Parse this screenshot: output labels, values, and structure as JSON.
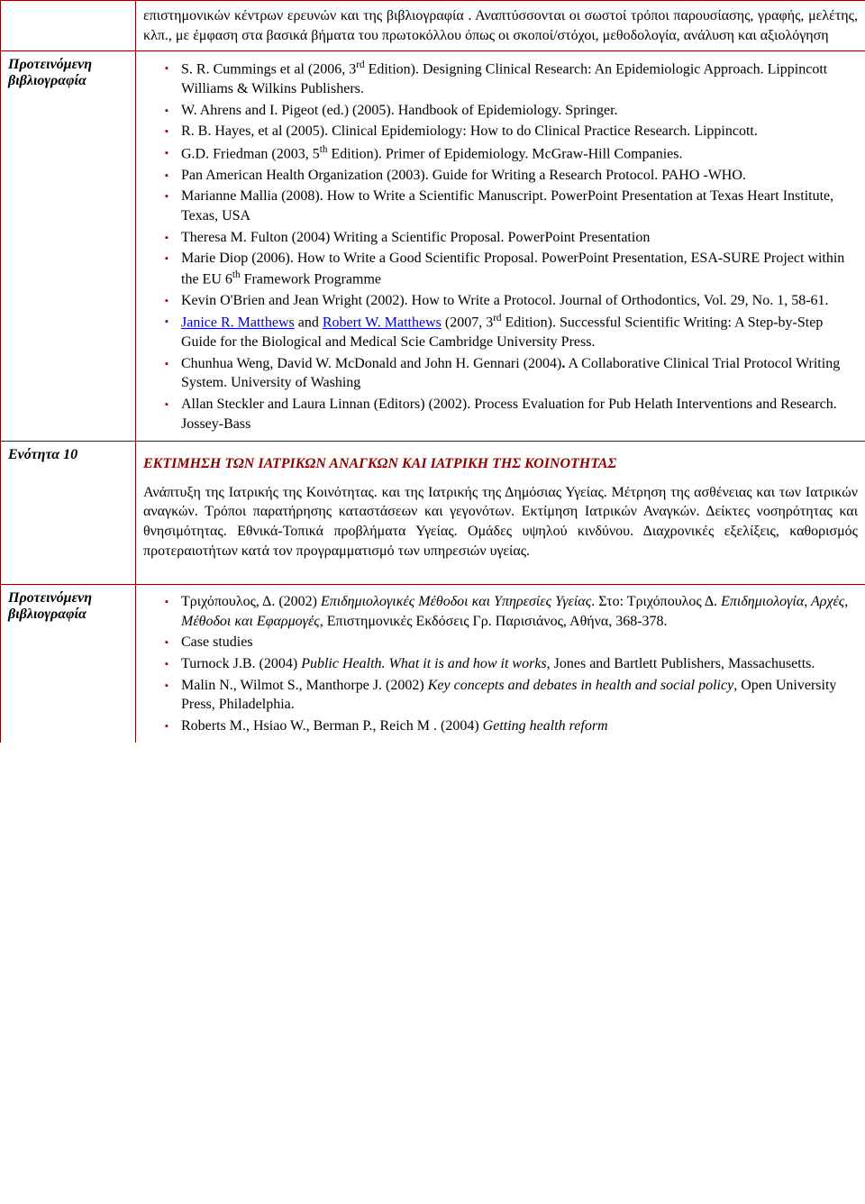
{
  "row1": {
    "label": "",
    "body": "επιστημονικών κέντρων ερευνών και της βιβλιογραφία . Αναπτύσσονται οι σωστοί τρόποι παρουσίασης, γραφής, μελέτης, κλπ., με έμφαση στα βασικά βήματα του πρωτοκόλλου όπως οι σκοποί/στόχοι, μεθοδολογία, ανάλυση και αξιολόγηση"
  },
  "row2": {
    "label": "Προτεινόμενη βιβλιογραφία",
    "items": [
      {
        "pre": "S. R. Cummings et al (2006, 3",
        "sup": "rd",
        "post": " Edition). Designing Clinical Research: An Epidemiologic Approach. Lippincott Williams & Wilkins Publishers."
      },
      {
        "pre": "W. Ahrens and I. Pigeot (ed.) (2005).  Handbook of Epidemiology.  Springer.",
        "sup": "",
        "post": ""
      },
      {
        "pre": "R. B. Hayes, et al (2005). Clinical Epidemiology: How to do Clinical Practice Research.  Lippincott.",
        "sup": "",
        "post": ""
      },
      {
        "pre": "G.D. Friedman (2003, 5",
        "sup": "th",
        "post": " Edition). Primer of Epidemiology. McGraw-Hill Companies."
      },
      {
        "pre": "Pan American Health Organization (2003).  Guide for Writing a Research Protocol. PAHO -WHO.",
        "sup": "",
        "post": ""
      },
      {
        "pre": "Marianne Mallia (2008).  How to Write a Scientific Manuscript.  PowerPoint Presentation at Texas Heart Institute, Texas, USA",
        "sup": "",
        "post": ""
      },
      {
        "pre": "Theresa M. Fulton (2004) Writing a Scientific Proposal.  PowerPoint Presentation",
        "sup": "",
        "post": ""
      },
      {
        "pre": "Marie Diop (2006).  How to Write a Good Scientific Proposal.  PowerPoint Presentation, ESA-SURE Project  within the EU 6",
        "sup": "th",
        "post": " Framework Programme"
      },
      {
        "pre": "Kevin O'Brien and Jean Wright (2002). How to Write a Protocol.  Journal of Orthodontics, Vol. 29, No. 1, 58-61.",
        "sup": "",
        "post": ""
      },
      {
        "pre": "",
        "link1": "Janice R. Matthews",
        "mid": " and ",
        "link2": "Robert W. Matthews",
        "post2": " (2007, 3",
        "sup": "rd",
        "post3": "  Edition). Successful Scientific Writing: A Step-by-Step Guide for the Biological and Medical Scie Cambridge University Press."
      },
      {
        "pre": "Chunhua Weng, David W. McDonald and John H. Gennari (2004)",
        "bolddot": ".",
        "post": "  A Collaborative Clinical Trial Protocol Writing System.  University of Washing"
      },
      {
        "pre": "Allan Steckler and Laura Linnan (Editors) (2002). Process Evaluation for Pub Helath Interventions and Research. Jossey-Bass",
        "sup": "",
        "post": ""
      }
    ]
  },
  "row3": {
    "label": "Ενότητα 10",
    "title": "ΕΚΤΙΜΗΣΗ ΤΩΝ ΙΑΤΡΙΚΩΝ ΑΝΑΓΚΩΝ ΚΑΙ ΙΑΤΡΙΚΗ ΤΗΣ ΚΟΙΝΟΤΗΤΑΣ",
    "body": "Ανάπτυξη της Ιατρικής της Κοινότητας. και της  Ιατρικής της Δημόσιας Υγείας. Μέτρηση της ασθένειας και των Ιατρικών αναγκών. Τρόποι παρατήρησης καταστάσεων και γεγονότων. Εκτίμηση Ιατρικών Αναγκών. Δείκτες νοσηρότητας και θνησιμότητας. Εθνικά-Τοπικά προβλήματα Υγείας. Ομάδες υψηλού κινδύνου. Διαχρονικές εξελίξεις, καθορισμός προτεραιοτήτων κατά τον προγραμματισμό των υπηρεσιών υγείας."
  },
  "row4": {
    "label": "Προτεινόμενη βιβλιογραφία",
    "items": [
      {
        "t1": "Τριχόπουλος, Δ.  (2002) ",
        "it": "Επιδημιολογικές Μέθοδοι και Υπηρεσίες Υγείας",
        "t2": ". Στο: Τριχόπουλος Δ. ",
        "it2": "Επιδημιολογία, Αρχές, Μέθοδοι και Εφαρμογές",
        "t3": ", Επιστημονικές Εκδόσεις Γρ. Παρισιάνος, Αθήνα, 368-378."
      },
      {
        "t1": "Case studies",
        "it": "",
        "t2": "",
        "it2": "",
        "t3": ""
      },
      {
        "t1": "Turnock J.B. (2004) ",
        "it": "Public Health. What it is and how it works",
        "t2": ", Jones and Bartlett Publishers, Massachusetts.",
        "it2": "",
        "t3": ""
      },
      {
        "t1": "Malin N., Wilmot S., Manthorpe J. (2002) ",
        "it": "Key concepts and debates in health and social policy",
        "t2": ", Open University Press, Philadelphia.",
        "it2": "",
        "t3": ""
      },
      {
        "t1": "Roberts M., Hsiao W., Berman P., Reich M . (2004) ",
        "it": "Getting health reform",
        "t2": "",
        "it2": "",
        "t3": ""
      }
    ]
  }
}
